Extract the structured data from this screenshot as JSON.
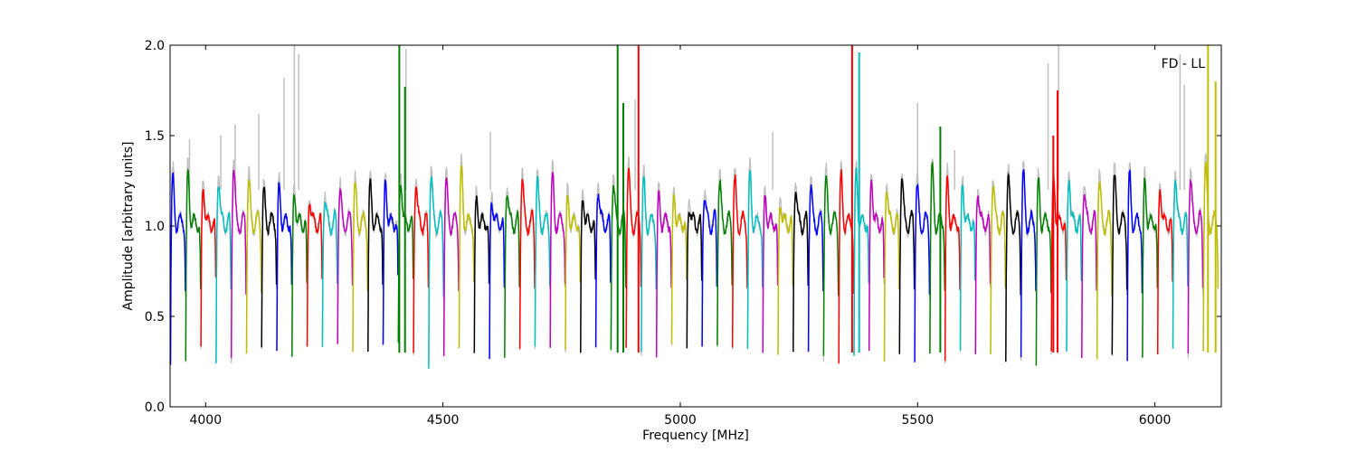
{
  "chart_data": {
    "type": "line",
    "title": "",
    "annotation": "FD - LL",
    "xlabel": "Frequency [MHz]",
    "ylabel": "Amplitude [arbitrary units]",
    "xlim": [
      3925,
      6140
    ],
    "ylim": [
      0.0,
      2.0
    ],
    "xticks": [
      4000,
      4500,
      5000,
      5500,
      6000
    ],
    "yticks": [
      0.0,
      0.5,
      1.0,
      1.5,
      2.0
    ],
    "xtick_labels": [
      "4000",
      "4500",
      "5000",
      "5500",
      "6000"
    ],
    "ytick_labels": [
      "0.0",
      "0.5",
      "1.0",
      "1.5",
      "2.0"
    ],
    "grid": false,
    "channel_width_mhz": 32,
    "first_channel_start_mhz": 3926,
    "channel_count": 69,
    "color_cycle": [
      "#0000ff",
      "#008000",
      "#ff0000",
      "#00bfbf",
      "#bf00bf",
      "#bfbf00",
      "#000000"
    ],
    "background_series_color": "#bfbfbf",
    "channel_peak_levels": [
      1.3,
      1.35,
      1.28,
      1.31,
      1.37,
      1.27,
      1.22,
      1.26,
      1.24,
      1.2,
      1.18,
      1.22,
      1.25,
      1.28,
      1.3,
      1.32,
      1.28,
      1.3,
      1.28,
      1.35,
      1.19,
      1.2,
      1.25,
      1.3,
      1.27,
      1.31,
      1.2,
      1.21,
      1.26,
      1.28,
      1.33,
      1.28,
      1.2,
      1.22,
      1.17,
      1.21,
      1.27,
      1.28,
      1.32,
      1.21,
      1.18,
      1.26,
      1.25,
      1.29,
      1.31,
      1.34,
      1.32,
      1.27,
      1.31,
      1.24,
      1.35,
      1.3,
      1.29,
      1.25,
      1.28,
      1.3,
      1.32,
      1.28,
      1.33,
      1.34,
      1.25,
      1.28,
      1.3,
      1.32,
      1.3,
      1.27,
      1.33,
      1.3,
      1.36
    ],
    "channel_trough_levels": [
      0.24,
      0.25,
      0.32,
      0.25,
      0.26,
      0.3,
      0.33,
      0.31,
      0.28,
      0.34,
      0.32,
      0.35,
      0.3,
      0.31,
      0.35,
      0.36,
      0.3,
      0.22,
      0.28,
      0.33,
      0.3,
      0.25,
      0.27,
      0.32,
      0.34,
      0.33,
      0.32,
      0.3,
      0.34,
      0.31,
      0.32,
      0.3,
      0.28,
      0.34,
      0.33,
      0.32,
      0.33,
      0.32,
      0.32,
      0.3,
      0.28,
      0.3,
      0.31,
      0.27,
      0.25,
      0.28,
      0.32,
      0.26,
      0.3,
      0.24,
      0.3,
      0.26,
      0.3,
      0.28,
      0.3,
      0.25,
      0.26,
      0.24,
      0.3,
      0.3,
      0.27,
      0.26,
      0.28,
      0.24,
      0.27,
      0.3,
      0.31,
      0.29,
      0.31
    ],
    "spikes": [
      {
        "x": 4408,
        "y": 2.0,
        "channel": 15
      },
      {
        "x": 4420,
        "y": 1.77,
        "channel": 15
      },
      {
        "x": 4868,
        "y": 2.0,
        "channel": 29
      },
      {
        "x": 4880,
        "y": 1.68,
        "channel": 29
      },
      {
        "x": 4912,
        "y": 2.0,
        "channel": 30
      },
      {
        "x": 5362,
        "y": 2.0,
        "channel": 44
      },
      {
        "x": 5377,
        "y": 1.96,
        "channel": 45
      },
      {
        "x": 5548,
        "y": 1.55,
        "channel": 50
      },
      {
        "x": 5786,
        "y": 1.5,
        "channel": 58
      },
      {
        "x": 5795,
        "y": 1.75,
        "channel": 58
      },
      {
        "x": 6112,
        "y": 2.0,
        "channel": 68
      },
      {
        "x": 6128,
        "y": 1.8,
        "channel": 68
      }
    ],
    "background_spikes": [
      {
        "x": 4187,
        "y": 2.0
      },
      {
        "x": 4196,
        "y": 1.95
      },
      {
        "x": 4165,
        "y": 1.82
      },
      {
        "x": 4112,
        "y": 1.62
      },
      {
        "x": 4062,
        "y": 1.56
      },
      {
        "x": 4032,
        "y": 1.5
      },
      {
        "x": 3966,
        "y": 1.48
      },
      {
        "x": 4422,
        "y": 1.98
      },
      {
        "x": 4600,
        "y": 1.52
      },
      {
        "x": 4905,
        "y": 1.7
      },
      {
        "x": 5195,
        "y": 1.52
      },
      {
        "x": 5500,
        "y": 1.68
      },
      {
        "x": 5578,
        "y": 1.42
      },
      {
        "x": 5775,
        "y": 1.9
      },
      {
        "x": 5797,
        "y": 2.0
      },
      {
        "x": 6053,
        "y": 1.95
      },
      {
        "x": 6062,
        "y": 1.78
      }
    ]
  }
}
